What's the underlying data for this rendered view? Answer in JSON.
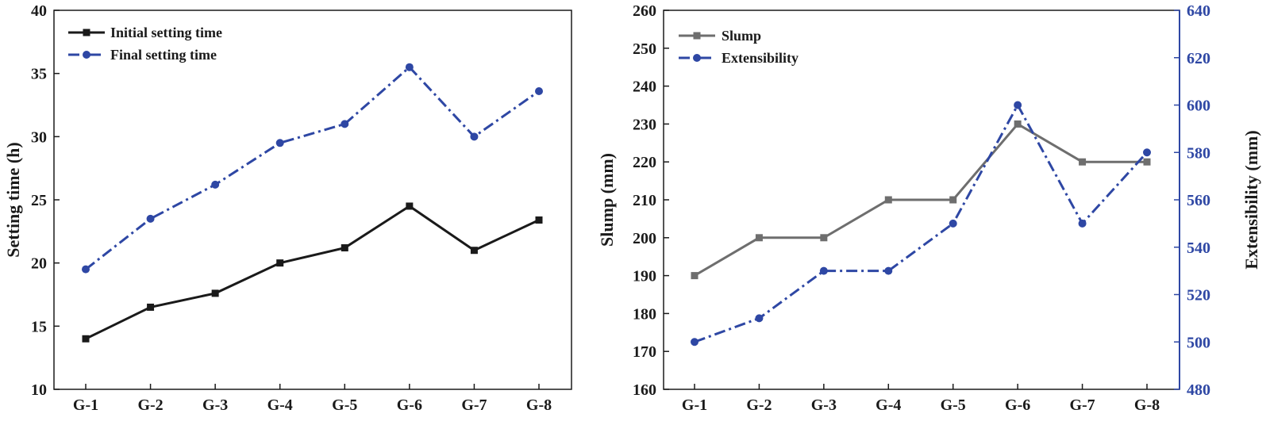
{
  "colors": {
    "black": "#1a1a1a",
    "blue": "#2e47a4",
    "gray": "#6e6e6e"
  },
  "chart_data": [
    {
      "type": "line",
      "categories": [
        "G-1",
        "G-2",
        "G-3",
        "G-4",
        "G-5",
        "G-6",
        "G-7",
        "G-8"
      ],
      "ylabel": "Setting time (h)",
      "ylim": [
        10,
        40
      ],
      "yticks": [
        "10",
        "15",
        "20",
        "25",
        "30",
        "35",
        "40"
      ],
      "series": [
        {
          "name": "Initial setting time",
          "values": [
            14,
            16.5,
            17.6,
            20,
            21.2,
            24.5,
            21,
            23.4
          ]
        },
        {
          "name": "Final setting time",
          "values": [
            19.5,
            23.5,
            26.2,
            29.5,
            31,
            35.5,
            30,
            33.6
          ]
        }
      ]
    },
    {
      "type": "line",
      "categories": [
        "G-1",
        "G-2",
        "G-3",
        "G-4",
        "G-5",
        "G-6",
        "G-7",
        "G-8"
      ],
      "ylabel": "Slump (mm)",
      "ylim": [
        160,
        260
      ],
      "yticks": [
        "160",
        "170",
        "180",
        "190",
        "200",
        "210",
        "220",
        "230",
        "240",
        "250",
        "260"
      ],
      "y2label": "Extensibility (mm)",
      "y2lim": [
        480,
        640
      ],
      "y2ticks": [
        "480",
        "500",
        "520",
        "540",
        "560",
        "580",
        "600",
        "620",
        "640"
      ],
      "series": [
        {
          "name": "Slump",
          "axis": "left",
          "values": [
            190,
            200,
            200,
            210,
            210,
            230,
            220,
            220
          ]
        },
        {
          "name": "Extensibility",
          "axis": "right",
          "values": [
            500,
            510,
            530,
            530,
            550,
            600,
            550,
            580
          ]
        }
      ]
    }
  ]
}
